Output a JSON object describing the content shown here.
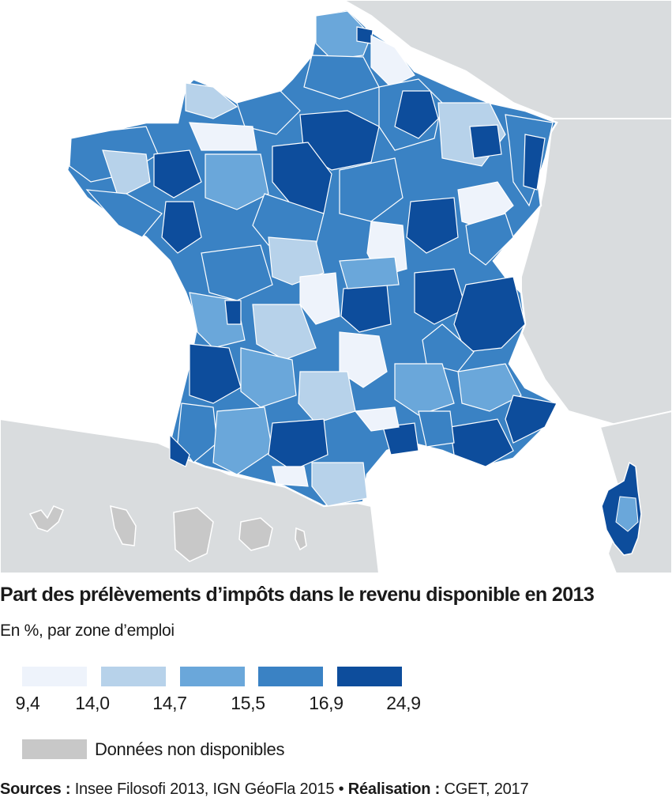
{
  "title": "Part des prélèvements d’impôts dans le revenu disponible en 2013",
  "subtitle": "En %, par zone d’emploi",
  "legend": {
    "classes": [
      {
        "color": "#eef3fb",
        "label": "9,4 – 14,0"
      },
      {
        "color": "#b7d2ea",
        "label": "14,0 – 14,7"
      },
      {
        "color": "#6aa7da",
        "label": "14,7 – 15,5"
      },
      {
        "color": "#3a82c4",
        "label": "15,5 – 16,9"
      },
      {
        "color": "#0d4d9c",
        "label": "16,9 – 24,9"
      }
    ],
    "breaks": [
      "9,4",
      "14,0",
      "14,7",
      "15,5",
      "16,9",
      "24,9"
    ],
    "na_color": "#c8c8c8",
    "na_label": "Données non disponibles"
  },
  "sources": {
    "sources_label": "Sources :",
    "sources_text": "Insee Filosofi 2013, IGN GéoFla 2015 •",
    "realisation_label": "Réalisation :",
    "realisation_text": "CGET, 2017"
  },
  "colors": {
    "sea": "#ffffff",
    "land_other": "#d9dcde",
    "na": "#c8c8c8"
  }
}
